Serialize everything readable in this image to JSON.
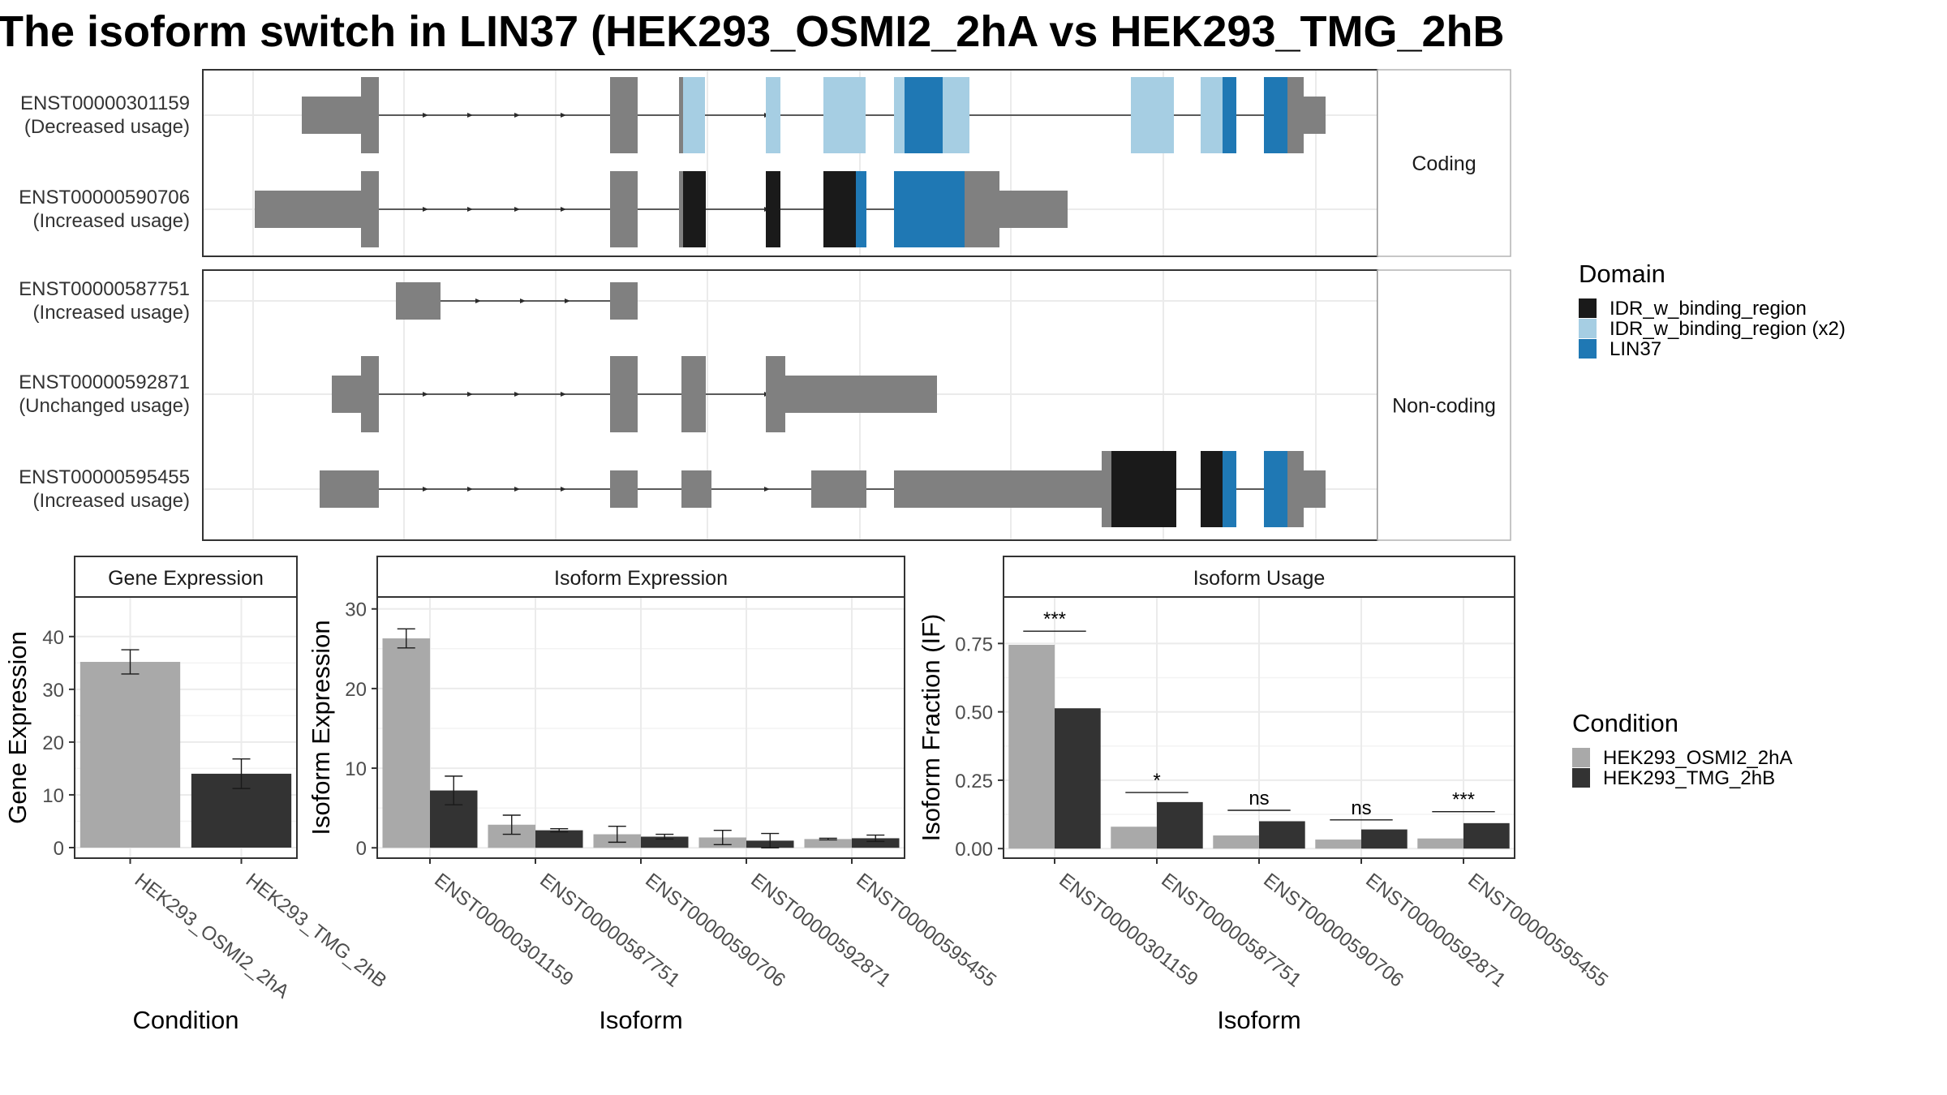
{
  "title": "The isoform switch in LIN37 (HEK293_OSMI2_2hA vs HEK293_TMG_2hB",
  "colors": {
    "intron": "#2b2b2b",
    "exon": "#808080",
    "domain_idr": "#1a1a1a",
    "domain_idr_x2": "#a6cee3",
    "domain_lin37": "#1f78b4",
    "cond1": "#a9a9a9",
    "cond2": "#333333",
    "panel_border": "#333333",
    "strip_fill": "#ffffff",
    "grid": "#ebebeb"
  },
  "structure": {
    "groups": [
      {
        "label": "Coding",
        "rows": [
          {
            "id": "ENST00000301159",
            "usage": "(Decreased usage)"
          },
          {
            "id": "ENST00000590706",
            "usage": "(Increased usage)"
          }
        ]
      },
      {
        "label": "Non-coding",
        "rows": [
          {
            "id": "ENST00000587751",
            "usage": "(Increased usage)"
          },
          {
            "id": "ENST00000592871",
            "usage": "(Unchanged usage)"
          },
          {
            "id": "ENST00000595455",
            "usage": "(Increased usage)"
          }
        ]
      }
    ]
  },
  "domain_legend": {
    "title": "Domain",
    "items": [
      {
        "label": "IDR_w_binding_region",
        "color_key": "domain_idr"
      },
      {
        "label": "IDR_w_binding_region (x2)",
        "color_key": "domain_idr_x2"
      },
      {
        "label": "LIN37",
        "color_key": "domain_lin37"
      }
    ]
  },
  "condition_legend": {
    "title": "Condition",
    "items": [
      {
        "label": "HEK293_OSMI2_2hA",
        "color_key": "cond1"
      },
      {
        "label": "HEK293_TMG_2hB",
        "color_key": "cond2"
      }
    ]
  },
  "chart_data": [
    {
      "type": "bar",
      "title": "Gene Expression",
      "xlabel": "Condition",
      "ylabel": "Gene Expression",
      "categories": [
        "HEK293_OSMI2_2hA",
        "HEK293_TMG_2hB"
      ],
      "values": [
        35.2,
        14.0
      ],
      "errors": [
        2.3,
        2.8
      ],
      "ylim": [
        -2,
        47.5
      ],
      "yticks": [
        0,
        10,
        20,
        30,
        40
      ],
      "grid": true
    },
    {
      "type": "bar",
      "title": "Isoform Expression",
      "xlabel": "Isoform",
      "ylabel": "Isoform Expression",
      "categories": [
        "ENST00000301159",
        "ENST00000587751",
        "ENST00000590706",
        "ENST00000592871",
        "ENST00000595455"
      ],
      "series": [
        {
          "name": "HEK293_OSMI2_2hA",
          "values": [
            26.3,
            2.9,
            1.7,
            1.3,
            1.1
          ],
          "errors": [
            1.2,
            1.2,
            1.0,
            0.9,
            0.1
          ]
        },
        {
          "name": "HEK293_TMG_2hB",
          "values": [
            7.2,
            2.2,
            1.4,
            0.9,
            1.2
          ],
          "errors": [
            1.8,
            0.2,
            0.3,
            0.9,
            0.4
          ]
        }
      ],
      "ylim": [
        -1.3,
        31.5
      ],
      "yticks": [
        0,
        10,
        20,
        30
      ],
      "grid": true
    },
    {
      "type": "bar",
      "title": "Isoform Usage",
      "xlabel": "Isoform",
      "ylabel": "Isoform Fraction (IF)",
      "categories": [
        "ENST00000301159",
        "ENST00000587751",
        "ENST00000590706",
        "ENST00000592871",
        "ENST00000595455"
      ],
      "series": [
        {
          "name": "HEK293_OSMI2_2hA",
          "values": [
            0.745,
            0.08,
            0.048,
            0.033,
            0.037
          ]
        },
        {
          "name": "HEK293_TMG_2hB",
          "values": [
            0.513,
            0.17,
            0.1,
            0.07,
            0.093
          ]
        }
      ],
      "significance": [
        "***",
        "*",
        "ns",
        "ns",
        "***"
      ],
      "sig_line_y": [
        0.795,
        0.205,
        0.14,
        0.105,
        0.135
      ],
      "ylim": [
        -0.035,
        0.92
      ],
      "yticks": [
        0.0,
        0.25,
        0.5,
        0.75
      ],
      "ytick_labels": [
        "0.00",
        "0.25",
        "0.50",
        "0.75"
      ],
      "grid": true
    }
  ]
}
